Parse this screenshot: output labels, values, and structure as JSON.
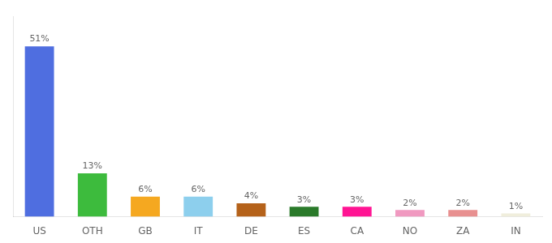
{
  "chart_data": {
    "type": "bar",
    "categories": [
      "US",
      "OTH",
      "GB",
      "IT",
      "DE",
      "ES",
      "CA",
      "NO",
      "ZA",
      "IN"
    ],
    "values": [
      51,
      13,
      6,
      6,
      4,
      3,
      3,
      2,
      2,
      1
    ],
    "value_labels": [
      "51%",
      "13%",
      "6%",
      "6%",
      "4%",
      "3%",
      "3%",
      "2%",
      "2%",
      "1%"
    ],
    "colors": [
      "#4f6ee0",
      "#3dbb3d",
      "#f5a820",
      "#8dcfed",
      "#b5621a",
      "#2a7a2a",
      "#ff1493",
      "#f099c0",
      "#e89090",
      "#f0eedc"
    ],
    "ylim": [
      0,
      60
    ],
    "grid": false,
    "data_labels": true,
    "tick_labels": "x"
  }
}
